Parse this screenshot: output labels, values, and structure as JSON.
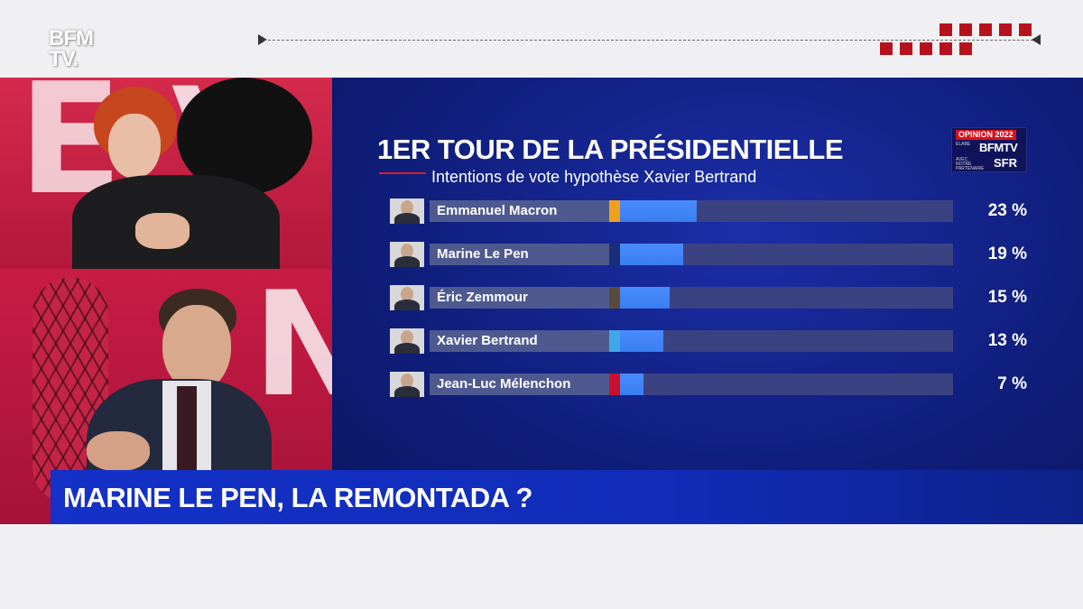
{
  "channel": {
    "logo_line1": "BFM",
    "logo_line2": "TV."
  },
  "graphic": {
    "title": "1ER TOUR DE LA PRÉSIDENTIELLE",
    "subtitle": "Intentions de vote hypothèse Xavier Bertrand",
    "badge": {
      "label": "OPINION 2022",
      "small_left": "ELABE",
      "brand": "BFMTV",
      "partners": "AVEC NOTRE PARTENAIRE",
      "partner_brand": "SFR"
    },
    "candidates": [
      {
        "name": "Emmanuel Macron",
        "pct_label": "23 %",
        "value": 23,
        "party_color": "#f0a11a"
      },
      {
        "name": "Marine Le Pen",
        "pct_label": "19 %",
        "value": 19,
        "party_color": "#1a2f7a"
      },
      {
        "name": "Éric Zemmour",
        "pct_label": "15 %",
        "value": 15,
        "party_color": "#5a4a3a"
      },
      {
        "name": "Xavier Bertrand",
        "pct_label": "13 %",
        "value": 13,
        "party_color": "#3fa8e8"
      },
      {
        "name": "Jean-Luc Mélenchon",
        "pct_label": "7 %",
        "value": 7,
        "party_color": "#c8102e"
      }
    ]
  },
  "banner": {
    "headline": "MARINE LE PEN, LA REMONTADA ?"
  },
  "colors": {
    "accent_red": "#b8111e",
    "banner_blue": "#1431c8",
    "bar_blue": "#3a7ef0"
  }
}
